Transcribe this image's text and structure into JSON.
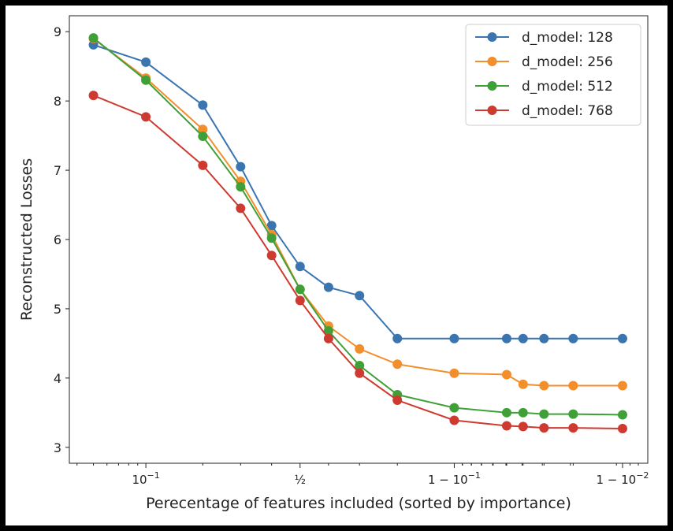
{
  "chart_data": {
    "type": "line",
    "title": "",
    "xlabel": "Perecentage of features included (sorted by importance)",
    "ylabel": "Reconstructed Losses",
    "xscale": "logit",
    "xlim": [
      0.036,
      0.993
    ],
    "ylim": [
      2.77,
      9.23
    ],
    "grid": false,
    "legend_placement": "top-right",
    "x_ticks": [
      {
        "value": 0.1,
        "label": "10",
        "sup": "−1",
        "prefix": ""
      },
      {
        "value": 0.5,
        "label": "½",
        "sup": "",
        "prefix": ""
      },
      {
        "value": 0.9,
        "label": "1 − 10",
        "sup": "−1",
        "prefix": ""
      },
      {
        "value": 0.99,
        "label": "1 − 10",
        "sup": "−2",
        "prefix": ""
      }
    ],
    "y_ticks": [
      3,
      4,
      5,
      6,
      7,
      8,
      9
    ],
    "x": [
      0.05,
      0.1,
      0.2,
      0.3,
      0.4,
      0.5,
      0.6,
      0.7,
      0.8,
      0.9,
      0.95,
      0.96,
      0.97,
      0.98,
      0.99
    ],
    "series": [
      {
        "name": "d_model: 128",
        "color": "#3a75b0",
        "values": [
          8.81,
          8.56,
          7.94,
          7.05,
          6.2,
          5.61,
          5.31,
          5.19,
          4.57,
          4.57,
          4.57,
          4.57,
          4.57,
          4.57,
          4.57
        ]
      },
      {
        "name": "d_model: 256",
        "color": "#f28e2b",
        "values": [
          8.9,
          8.33,
          7.59,
          6.84,
          6.07,
          5.28,
          4.75,
          4.42,
          4.2,
          4.07,
          4.05,
          3.91,
          3.89,
          3.89,
          3.89
        ]
      },
      {
        "name": "d_model: 512",
        "color": "#3fa037",
        "values": [
          8.91,
          8.3,
          7.49,
          6.76,
          6.02,
          5.28,
          4.68,
          4.18,
          3.76,
          3.57,
          3.5,
          3.5,
          3.48,
          3.48,
          3.47
        ]
      },
      {
        "name": "d_model: 768",
        "color": "#cf3a30",
        "values": [
          8.08,
          7.77,
          7.07,
          6.45,
          5.77,
          5.12,
          4.57,
          4.07,
          3.68,
          3.39,
          3.31,
          3.3,
          3.28,
          3.28,
          3.27
        ]
      }
    ]
  }
}
